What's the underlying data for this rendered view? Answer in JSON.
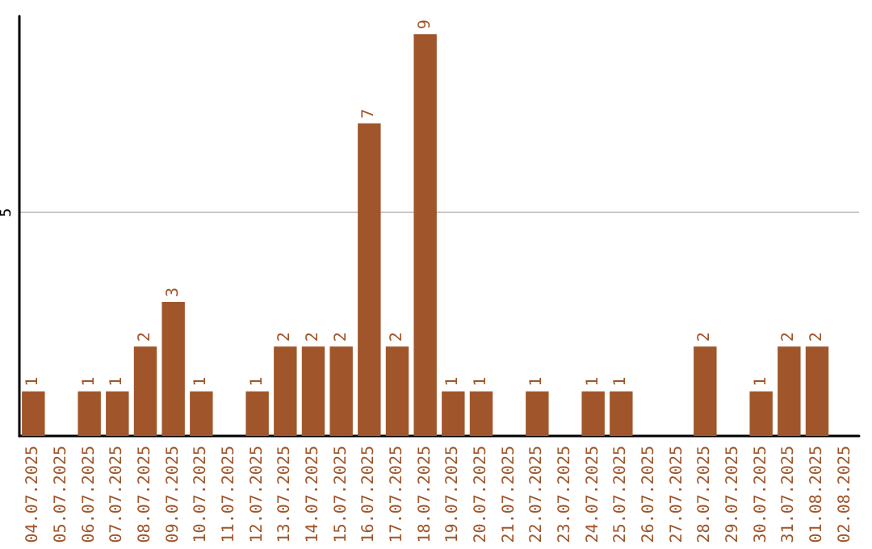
{
  "chart_data": {
    "type": "bar",
    "categories": [
      "04.07.2025",
      "05.07.2025",
      "06.07.2025",
      "07.07.2025",
      "08.07.2025",
      "09.07.2025",
      "10.07.2025",
      "11.07.2025",
      "12.07.2025",
      "13.07.2025",
      "14.07.2025",
      "15.07.2025",
      "16.07.2025",
      "17.07.2025",
      "18.07.2025",
      "19.07.2025",
      "20.07.2025",
      "21.07.2025",
      "22.07.2025",
      "23.07.2025",
      "24.07.2025",
      "25.07.2025",
      "26.07.2025",
      "27.07.2025",
      "28.07.2025",
      "29.07.2025",
      "30.07.2025",
      "31.07.2025",
      "01.08.2025",
      "02.08.2025"
    ],
    "values": [
      1,
      0,
      1,
      1,
      2,
      3,
      1,
      0,
      1,
      2,
      2,
      2,
      7,
      2,
      9,
      1,
      1,
      0,
      1,
      0,
      1,
      1,
      0,
      0,
      2,
      0,
      1,
      2,
      2,
      0
    ],
    "value_labels": [
      "1",
      null,
      "1",
      "1",
      "2",
      "3",
      "1",
      null,
      "1",
      "2",
      "2",
      "2",
      "7",
      "2",
      "9",
      "1",
      "1",
      null,
      "1",
      null,
      "1",
      "1",
      null,
      null,
      "2",
      null,
      "1",
      "2",
      "2",
      null
    ],
    "color": "#a0562a",
    "ylim": [
      0,
      9.4
    ],
    "yticks": [
      5
    ],
    "grid": "y"
  }
}
